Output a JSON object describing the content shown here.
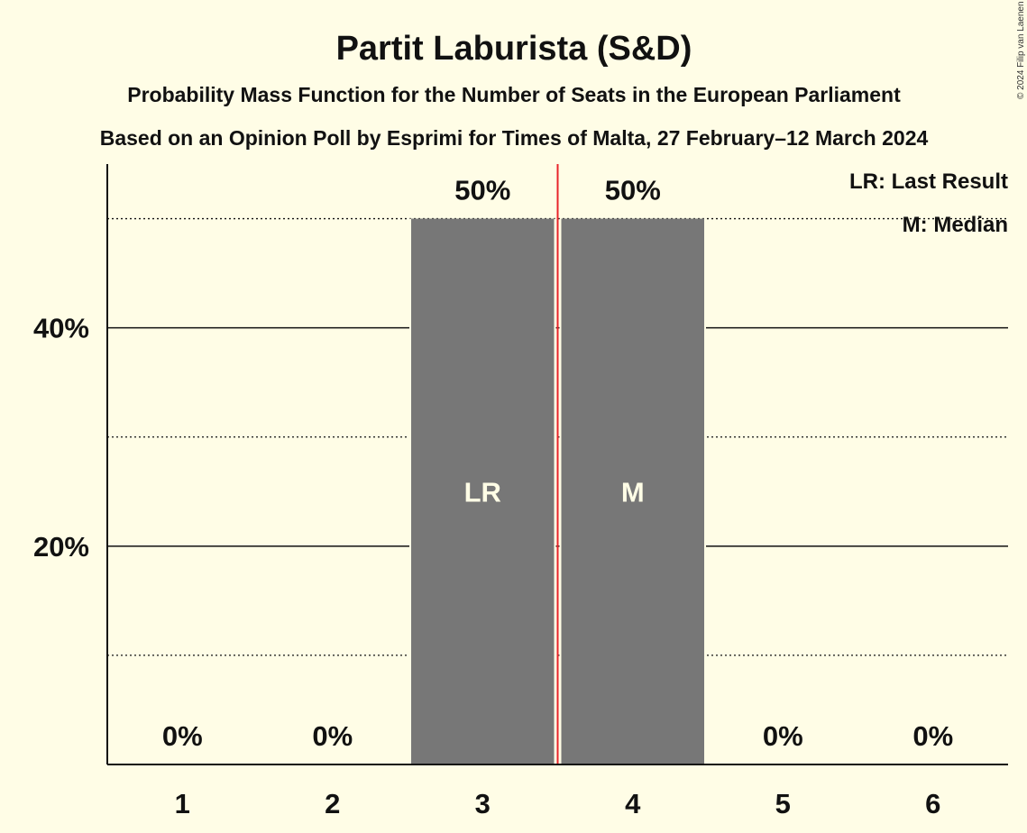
{
  "chart_data": {
    "type": "bar",
    "title": "Partit Laburista (S&D)",
    "subtitle": "Probability Mass Function for the Number of Seats in the European Parliament",
    "subtitle2": "Based on an Opinion Poll by Esprimi for Times of Malta, 27 February–12 March 2024",
    "categories": [
      "1",
      "2",
      "3",
      "4",
      "5",
      "6"
    ],
    "values": [
      0,
      0,
      50,
      50,
      0,
      0
    ],
    "value_labels": [
      "0%",
      "0%",
      "50%",
      "50%",
      "0%",
      "0%"
    ],
    "bar_annotations": [
      "",
      "",
      "LR",
      "M",
      "",
      ""
    ],
    "median_line_between": [
      "3",
      "4"
    ],
    "ylim": [
      0,
      55
    ],
    "yticks": [
      20,
      40
    ],
    "ytick_labels": [
      "20%",
      "40%"
    ],
    "minor_gridlines": [
      10,
      30,
      50
    ],
    "xlabel": "",
    "ylabel": "",
    "legend": [
      "LR: Last Result",
      "M: Median"
    ],
    "legend_position": "top-right",
    "copyright": "© 2024 Filip van Laenen",
    "colors": {
      "background": "#fffde6",
      "bar": "#777777",
      "median_line": "#e8232a",
      "text": "#111111"
    }
  }
}
